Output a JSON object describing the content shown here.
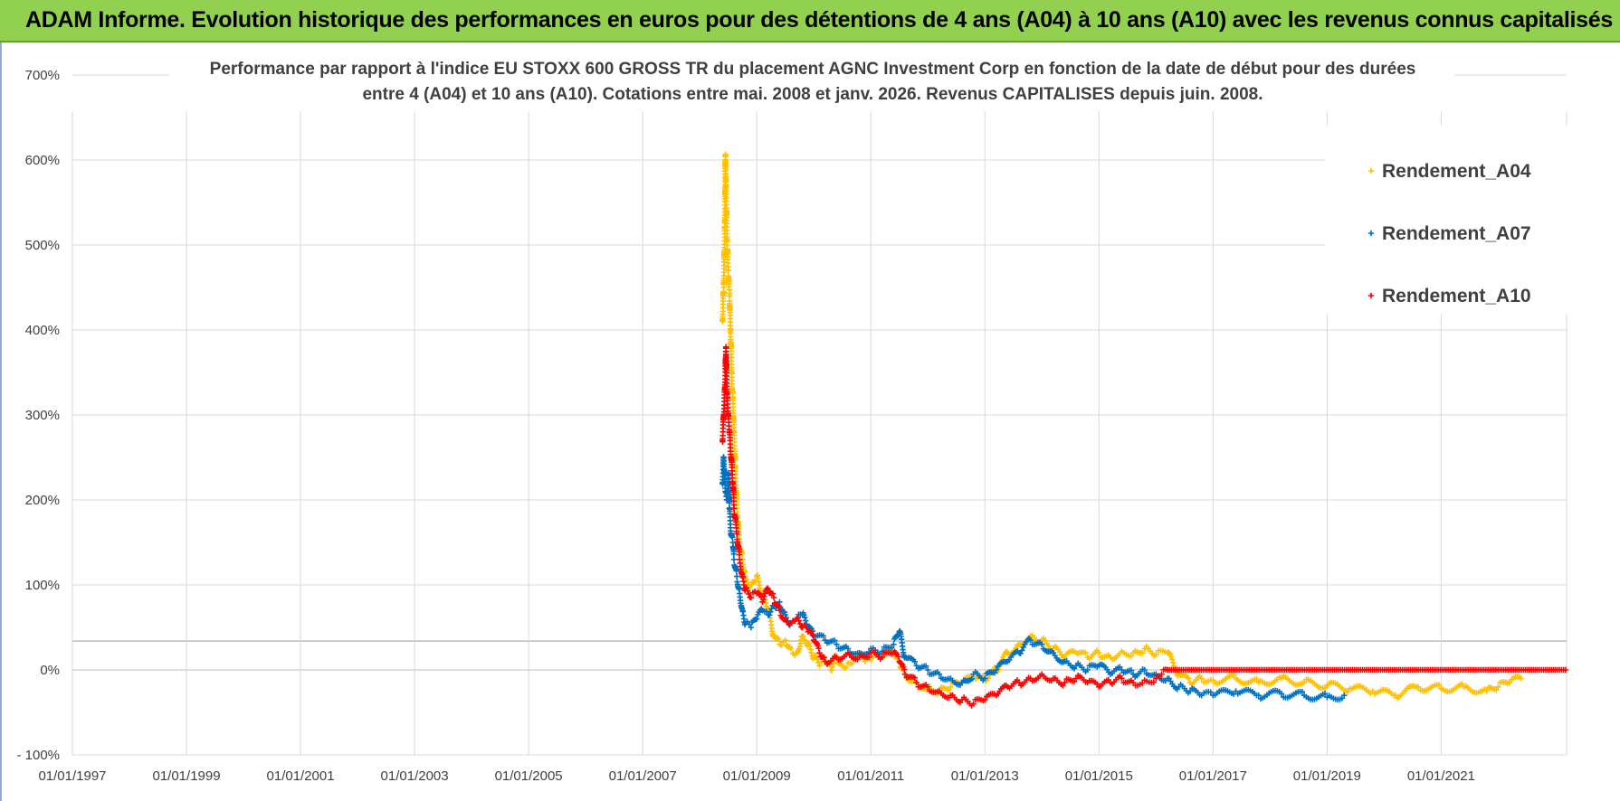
{
  "header": {
    "title": "ADAM Informe. Evolution historique des performances en euros pour des détentions de 4 ans (A04) à 10 ans (A10) avec les revenus connus capitalisés"
  },
  "colors": {
    "header_bg": "#92d050",
    "a04": "#ffc000",
    "a07": "#0070c0",
    "a10": "#ff0000",
    "grid": "#d9d9d9"
  },
  "chart_data": {
    "type": "scatter",
    "title_lines": [
      "Performance par rapport à l'indice EU STOXX 600 GROSS TR  du placement AGNC Investment Corp en fonction de la date de début pour des durées",
      "entre 4 (A04) et 10 ans (A10). Cotations entre mai. 2008 et janv. 2026. Revenus CAPITALISES depuis juin. 2008."
    ],
    "x_tick_labels": [
      "01/01/1997",
      "01/01/1999",
      "01/01/2001",
      "01/01/2003",
      "01/01/2005",
      "01/01/2007",
      "01/01/2009",
      "01/01/2011",
      "01/01/2013",
      "01/01/2015",
      "01/01/2017",
      "01/01/2019",
      "01/01/2021"
    ],
    "x_tick_years": [
      1997,
      1999,
      2001,
      2003,
      2005,
      2007,
      2009,
      2011,
      2013,
      2015,
      2017,
      2019,
      2021
    ],
    "xlim": [
      1997,
      2023.2
    ],
    "y_tick_labels": [
      "700%",
      "600%",
      "500%",
      "400%",
      "300%",
      "200%",
      "100%",
      "0%",
      "- 100%"
    ],
    "y_tick_values": [
      700,
      600,
      500,
      400,
      300,
      200,
      100,
      0,
      -100
    ],
    "ylim": [
      -100,
      700
    ],
    "x_unit": "year",
    "y_unit": "percent",
    "legend_position": "top-right",
    "series": [
      {
        "name": "Rendement_A04",
        "color": "#ffc000",
        "points": [
          [
            2008.4,
            410
          ],
          [
            2008.42,
            450
          ],
          [
            2008.44,
            520
          ],
          [
            2008.45,
            605
          ],
          [
            2008.46,
            570
          ],
          [
            2008.47,
            540
          ],
          [
            2008.48,
            500
          ],
          [
            2008.5,
            470
          ],
          [
            2008.52,
            440
          ],
          [
            2008.54,
            400
          ],
          [
            2008.56,
            350
          ],
          [
            2008.58,
            320
          ],
          [
            2008.6,
            280
          ],
          [
            2008.62,
            240
          ],
          [
            2008.64,
            210
          ],
          [
            2008.66,
            180
          ],
          [
            2008.7,
            150
          ],
          [
            2008.75,
            130
          ],
          [
            2008.8,
            110
          ],
          [
            2008.9,
            100
          ],
          [
            2009.0,
            110
          ],
          [
            2009.1,
            90
          ],
          [
            2009.2,
            70
          ],
          [
            2009.3,
            40
          ],
          [
            2009.4,
            30
          ],
          [
            2009.5,
            35
          ],
          [
            2009.6,
            25
          ],
          [
            2009.7,
            20
          ],
          [
            2009.8,
            40
          ],
          [
            2009.9,
            30
          ],
          [
            2010.0,
            15
          ],
          [
            2010.1,
            5
          ],
          [
            2010.2,
            10
          ],
          [
            2010.3,
            0
          ],
          [
            2010.4,
            15
          ],
          [
            2010.5,
            5
          ],
          [
            2010.6,
            8
          ],
          [
            2010.7,
            12
          ],
          [
            2010.8,
            18
          ],
          [
            2010.9,
            10
          ],
          [
            2011.0,
            12
          ],
          [
            2011.2,
            15
          ],
          [
            2011.4,
            20
          ],
          [
            2011.5,
            10
          ],
          [
            2011.6,
            -5
          ],
          [
            2011.8,
            -15
          ],
          [
            2012.0,
            -20
          ],
          [
            2012.2,
            -25
          ],
          [
            2012.4,
            -20
          ],
          [
            2012.6,
            -15
          ],
          [
            2012.8,
            -10
          ],
          [
            2013.0,
            -12
          ],
          [
            2013.2,
            0
          ],
          [
            2013.4,
            20
          ],
          [
            2013.6,
            30
          ],
          [
            2013.8,
            40
          ],
          [
            2014.0,
            35
          ],
          [
            2014.2,
            25
          ],
          [
            2014.4,
            15
          ],
          [
            2014.6,
            20
          ],
          [
            2014.8,
            15
          ],
          [
            2015.0,
            20
          ],
          [
            2015.2,
            15
          ],
          [
            2015.4,
            22
          ],
          [
            2015.6,
            20
          ],
          [
            2015.8,
            25
          ],
          [
            2016.0,
            18
          ],
          [
            2016.2,
            20
          ],
          [
            2016.4,
            -5
          ],
          [
            2016.6,
            -15
          ],
          [
            2016.8,
            -10
          ],
          [
            2017.0,
            -12
          ],
          [
            2017.4,
            -10
          ],
          [
            2017.8,
            -15
          ],
          [
            2018.2,
            -10
          ],
          [
            2018.6,
            -15
          ],
          [
            2019.0,
            -18
          ],
          [
            2019.4,
            -22
          ],
          [
            2019.8,
            -25
          ],
          [
            2020.2,
            -30
          ],
          [
            2020.6,
            -20
          ],
          [
            2021.0,
            -22
          ],
          [
            2021.4,
            -20
          ],
          [
            2021.8,
            -25
          ],
          [
            2022.0,
            -20
          ],
          [
            2022.2,
            -15
          ],
          [
            2022.4,
            -10
          ]
        ]
      },
      {
        "name": "Rendement_A07",
        "color": "#0070c0",
        "points": [
          [
            2008.4,
            220
          ],
          [
            2008.42,
            250
          ],
          [
            2008.45,
            210
          ],
          [
            2008.48,
            200
          ],
          [
            2008.5,
            230
          ],
          [
            2008.52,
            190
          ],
          [
            2008.55,
            160
          ],
          [
            2008.58,
            150
          ],
          [
            2008.6,
            130
          ],
          [
            2008.65,
            110
          ],
          [
            2008.7,
            90
          ],
          [
            2008.75,
            70
          ],
          [
            2008.8,
            55
          ],
          [
            2008.9,
            50
          ],
          [
            2009.0,
            60
          ],
          [
            2009.1,
            70
          ],
          [
            2009.2,
            65
          ],
          [
            2009.3,
            75
          ],
          [
            2009.4,
            80
          ],
          [
            2009.5,
            65
          ],
          [
            2009.6,
            55
          ],
          [
            2009.7,
            60
          ],
          [
            2009.8,
            65
          ],
          [
            2009.9,
            50
          ],
          [
            2010.0,
            40
          ],
          [
            2010.2,
            35
          ],
          [
            2010.4,
            30
          ],
          [
            2010.6,
            25
          ],
          [
            2010.8,
            20
          ],
          [
            2011.0,
            25
          ],
          [
            2011.2,
            22
          ],
          [
            2011.4,
            30
          ],
          [
            2011.5,
            45
          ],
          [
            2011.6,
            15
          ],
          [
            2011.8,
            5
          ],
          [
            2012.0,
            0
          ],
          [
            2012.2,
            -5
          ],
          [
            2012.4,
            -10
          ],
          [
            2012.6,
            -15
          ],
          [
            2012.8,
            -5
          ],
          [
            2013.0,
            -10
          ],
          [
            2013.2,
            0
          ],
          [
            2013.4,
            10
          ],
          [
            2013.6,
            20
          ],
          [
            2013.8,
            35
          ],
          [
            2014.0,
            30
          ],
          [
            2014.2,
            20
          ],
          [
            2014.4,
            10
          ],
          [
            2014.6,
            5
          ],
          [
            2014.8,
            0
          ],
          [
            2015.0,
            5
          ],
          [
            2015.2,
            -5
          ],
          [
            2015.4,
            0
          ],
          [
            2015.6,
            -5
          ],
          [
            2015.8,
            0
          ],
          [
            2016.0,
            -5
          ],
          [
            2016.2,
            -10
          ],
          [
            2016.4,
            -20
          ],
          [
            2016.6,
            -25
          ],
          [
            2016.8,
            -30
          ],
          [
            2017.0,
            -30
          ],
          [
            2017.4,
            -25
          ],
          [
            2017.8,
            -30
          ],
          [
            2018.2,
            -28
          ],
          [
            2018.6,
            -30
          ],
          [
            2019.0,
            -32
          ],
          [
            2019.3,
            -30
          ]
        ]
      },
      {
        "name": "Rendement_A10",
        "color": "#ff0000",
        "points": [
          [
            2008.4,
            270
          ],
          [
            2008.42,
            300
          ],
          [
            2008.44,
            330
          ],
          [
            2008.46,
            380
          ],
          [
            2008.48,
            320
          ],
          [
            2008.5,
            300
          ],
          [
            2008.52,
            280
          ],
          [
            2008.55,
            250
          ],
          [
            2008.58,
            220
          ],
          [
            2008.6,
            190
          ],
          [
            2008.65,
            160
          ],
          [
            2008.7,
            130
          ],
          [
            2008.75,
            110
          ],
          [
            2008.8,
            95
          ],
          [
            2008.9,
            85
          ],
          [
            2009.0,
            90
          ],
          [
            2009.1,
            80
          ],
          [
            2009.2,
            95
          ],
          [
            2009.3,
            85
          ],
          [
            2009.4,
            70
          ],
          [
            2009.5,
            60
          ],
          [
            2009.6,
            55
          ],
          [
            2009.7,
            60
          ],
          [
            2009.8,
            50
          ],
          [
            2009.9,
            45
          ],
          [
            2010.0,
            35
          ],
          [
            2010.1,
            20
          ],
          [
            2010.2,
            10
          ],
          [
            2010.4,
            15
          ],
          [
            2010.6,
            20
          ],
          [
            2010.8,
            15
          ],
          [
            2011.0,
            20
          ],
          [
            2011.2,
            15
          ],
          [
            2011.4,
            20
          ],
          [
            2011.5,
            10
          ],
          [
            2011.6,
            -5
          ],
          [
            2011.8,
            -15
          ],
          [
            2012.0,
            -20
          ],
          [
            2012.2,
            -25
          ],
          [
            2012.4,
            -30
          ],
          [
            2012.6,
            -35
          ],
          [
            2012.8,
            -40
          ],
          [
            2013.0,
            -35
          ],
          [
            2013.2,
            -30
          ],
          [
            2013.4,
            -20
          ],
          [
            2013.6,
            -15
          ],
          [
            2013.8,
            -10
          ],
          [
            2014.0,
            -5
          ],
          [
            2014.2,
            -10
          ],
          [
            2014.4,
            -15
          ],
          [
            2014.6,
            -10
          ],
          [
            2014.8,
            -15
          ],
          [
            2015.0,
            -20
          ],
          [
            2015.2,
            -15
          ],
          [
            2015.4,
            -10
          ],
          [
            2015.6,
            -15
          ],
          [
            2015.8,
            -12
          ],
          [
            2016.0,
            -10
          ],
          [
            2016.1,
            -5
          ],
          [
            2016.2,
            0
          ]
        ],
        "flat_segment": {
          "from_year": 2016.2,
          "to_year": 2023.2,
          "value": 0
        }
      }
    ]
  }
}
